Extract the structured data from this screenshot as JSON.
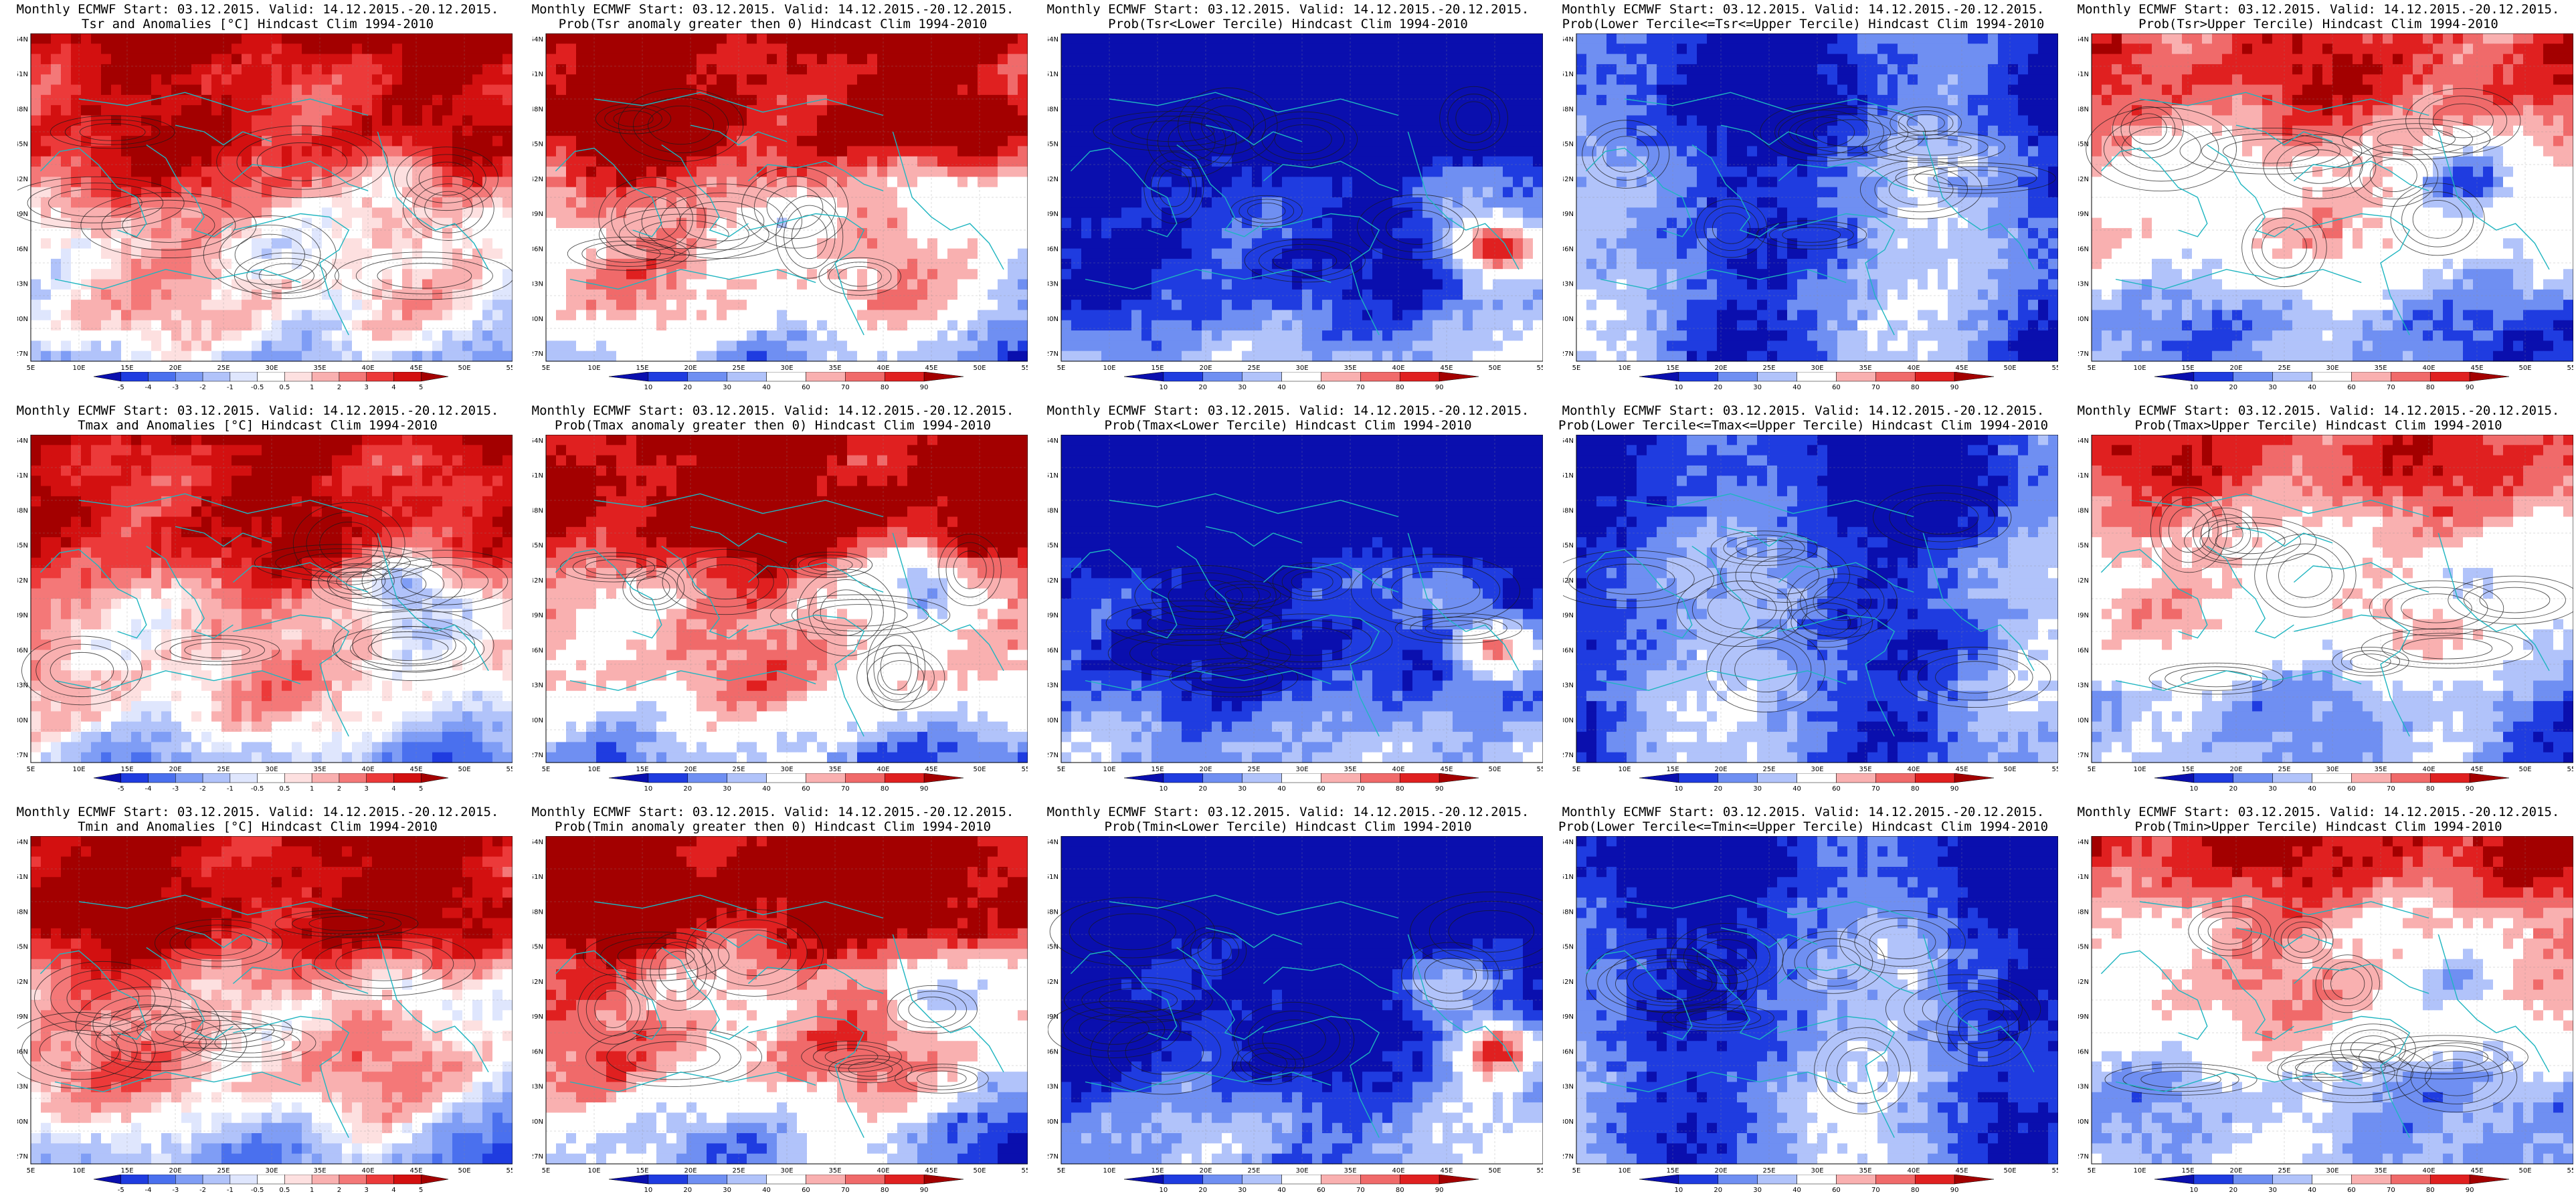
{
  "color_scales": {
    "anomaly": {
      "labels": [
        "-5",
        "-4",
        "-3",
        "-2",
        "-1",
        "-0.5",
        "0.5",
        "1",
        "2",
        "3",
        "4",
        "5"
      ],
      "colors": [
        "#0a0fae",
        "#1f3ce0",
        "#4a70ee",
        "#7f9df5",
        "#b1c3fa",
        "#dfe6fd",
        "#ffffff",
        "#fde0e0",
        "#f9b0b0",
        "#f47878",
        "#ec3a3a",
        "#d31010",
        "#a30000"
      ]
    },
    "probability": {
      "labels": [
        "10",
        "20",
        "30",
        "40",
        "60",
        "70",
        "80",
        "90"
      ],
      "colors": [
        "#0a0fae",
        "#1f3ce0",
        "#6f8ff2",
        "#b1c3fa",
        "#ffffff",
        "#f9b0b0",
        "#f06a6a",
        "#e02020",
        "#a30000"
      ]
    }
  },
  "axes": {
    "lat_labels": [
      "54N",
      "51N",
      "48N",
      "45N",
      "42N",
      "39N",
      "36N",
      "33N",
      "30N",
      "27N"
    ],
    "lon_labels": [
      "5E",
      "10E",
      "15E",
      "20E",
      "25E",
      "30E",
      "35E",
      "40E",
      "45E",
      "50E",
      "55E"
    ]
  },
  "panels": [
    {
      "id": "tsr-anom",
      "title1": "Monthly ECMWF Start: 03.12.2015. Valid: 14.12.2015.-20.12.2015.",
      "title2": "Tsr and Anomalies [°C] Hindcast Clim 1994-2010",
      "scale": "anomaly",
      "field": "anom",
      "seed": 11,
      "strength": 1.0
    },
    {
      "id": "tsr-prob-pos",
      "title1": "Monthly ECMWF Start: 03.12.2015. Valid: 14.12.2015.-20.12.2015.",
      "title2": "Prob(Tsr anomaly greater then 0) Hindcast Clim 1994-2010",
      "scale": "probability",
      "field": "pos",
      "seed": 12,
      "strength": 1.0
    },
    {
      "id": "tsr-prob-lower",
      "title1": "Monthly ECMWF Start: 03.12.2015. Valid: 14.12.2015.-20.12.2015.",
      "title2": "Prob(Tsr<Lower Tercile) Hindcast Clim 1994-2010",
      "scale": "probability",
      "field": "lower",
      "seed": 13,
      "strength": 1.0
    },
    {
      "id": "tsr-prob-middle",
      "title1": "Monthly ECMWF Start: 03.12.2015. Valid: 14.12.2015.-20.12.2015.",
      "title2": "Prob(Lower Tercile<=Tsr<=Upper Tercile) Hindcast Clim 1994-2010",
      "scale": "probability",
      "field": "middle",
      "seed": 14,
      "strength": 1.0
    },
    {
      "id": "tsr-prob-upper",
      "title1": "Monthly ECMWF Start: 03.12.2015. Valid: 14.12.2015.-20.12.2015.",
      "title2": "Prob(Tsr>Upper Tercile) Hindcast Clim 1994-2010",
      "scale": "probability",
      "field": "upper",
      "seed": 15,
      "strength": 1.0
    },
    {
      "id": "tmax-anom",
      "title1": "Monthly ECMWF Start: 03.12.2015. Valid: 14.12.2015.-20.12.2015.",
      "title2": "Tmax and Anomalies [°C] Hindcast Clim 1994-2010",
      "scale": "anomaly",
      "field": "anom",
      "seed": 21,
      "strength": 0.95
    },
    {
      "id": "tmax-prob-pos",
      "title1": "Monthly ECMWF Start: 03.12.2015. Valid: 14.12.2015.-20.12.2015.",
      "title2": "Prob(Tmax anomaly greater then 0) Hindcast Clim 1994-2010",
      "scale": "probability",
      "field": "pos",
      "seed": 22,
      "strength": 1.0
    },
    {
      "id": "tmax-prob-lower",
      "title1": "Monthly ECMWF Start: 03.12.2015. Valid: 14.12.2015.-20.12.2015.",
      "title2": "Prob(Tmax<Lower Tercile) Hindcast Clim 1994-2010",
      "scale": "probability",
      "field": "lower",
      "seed": 23,
      "strength": 1.05
    },
    {
      "id": "tmax-prob-middle",
      "title1": "Monthly ECMWF Start: 03.12.2015. Valid: 14.12.2015.-20.12.2015.",
      "title2": "Prob(Lower Tercile<=Tmax<=Upper Tercile) Hindcast Clim 1994-2010",
      "scale": "probability",
      "field": "middle",
      "seed": 24,
      "strength": 1.0
    },
    {
      "id": "tmax-prob-upper",
      "title1": "Monthly ECMWF Start: 03.12.2015. Valid: 14.12.2015.-20.12.2015.",
      "title2": "Prob(Tmax>Upper Tercile) Hindcast Clim 1994-2010",
      "scale": "probability",
      "field": "upper",
      "seed": 25,
      "strength": 0.9
    },
    {
      "id": "tmin-anom",
      "title1": "Monthly ECMWF Start: 03.12.2015. Valid: 14.12.2015.-20.12.2015.",
      "title2": "Tmin and Anomalies [°C] Hindcast Clim 1994-2010",
      "scale": "anomaly",
      "field": "anom",
      "seed": 31,
      "strength": 1.0
    },
    {
      "id": "tmin-prob-pos",
      "title1": "Monthly ECMWF Start: 03.12.2015. Valid: 14.12.2015.-20.12.2015.",
      "title2": "Prob(Tmin anomaly greater then 0) Hindcast Clim 1994-2010",
      "scale": "probability",
      "field": "pos",
      "seed": 32,
      "strength": 1.0
    },
    {
      "id": "tmin-prob-lower",
      "title1": "Monthly ECMWF Start: 03.12.2015. Valid: 14.12.2015.-20.12.2015.",
      "title2": "Prob(Tmin<Lower Tercile) Hindcast Clim 1994-2010",
      "scale": "probability",
      "field": "lower",
      "seed": 33,
      "strength": 1.1
    },
    {
      "id": "tmin-prob-middle",
      "title1": "Monthly ECMWF Start: 03.12.2015. Valid: 14.12.2015.-20.12.2015.",
      "title2": "Prob(Lower Tercile<=Tmin<=Upper Tercile) Hindcast Clim 1994-2010",
      "scale": "probability",
      "field": "middle",
      "seed": 34,
      "strength": 1.0
    },
    {
      "id": "tmin-prob-upper",
      "title1": "Monthly ECMWF Start: 03.12.2015. Valid: 14.12.2015.-20.12.2015.",
      "title2": "Prob(Tmin>Upper Tercile) Hindcast Clim 1994-2010",
      "scale": "probability",
      "field": "upper",
      "seed": 35,
      "strength": 1.0
    }
  ]
}
